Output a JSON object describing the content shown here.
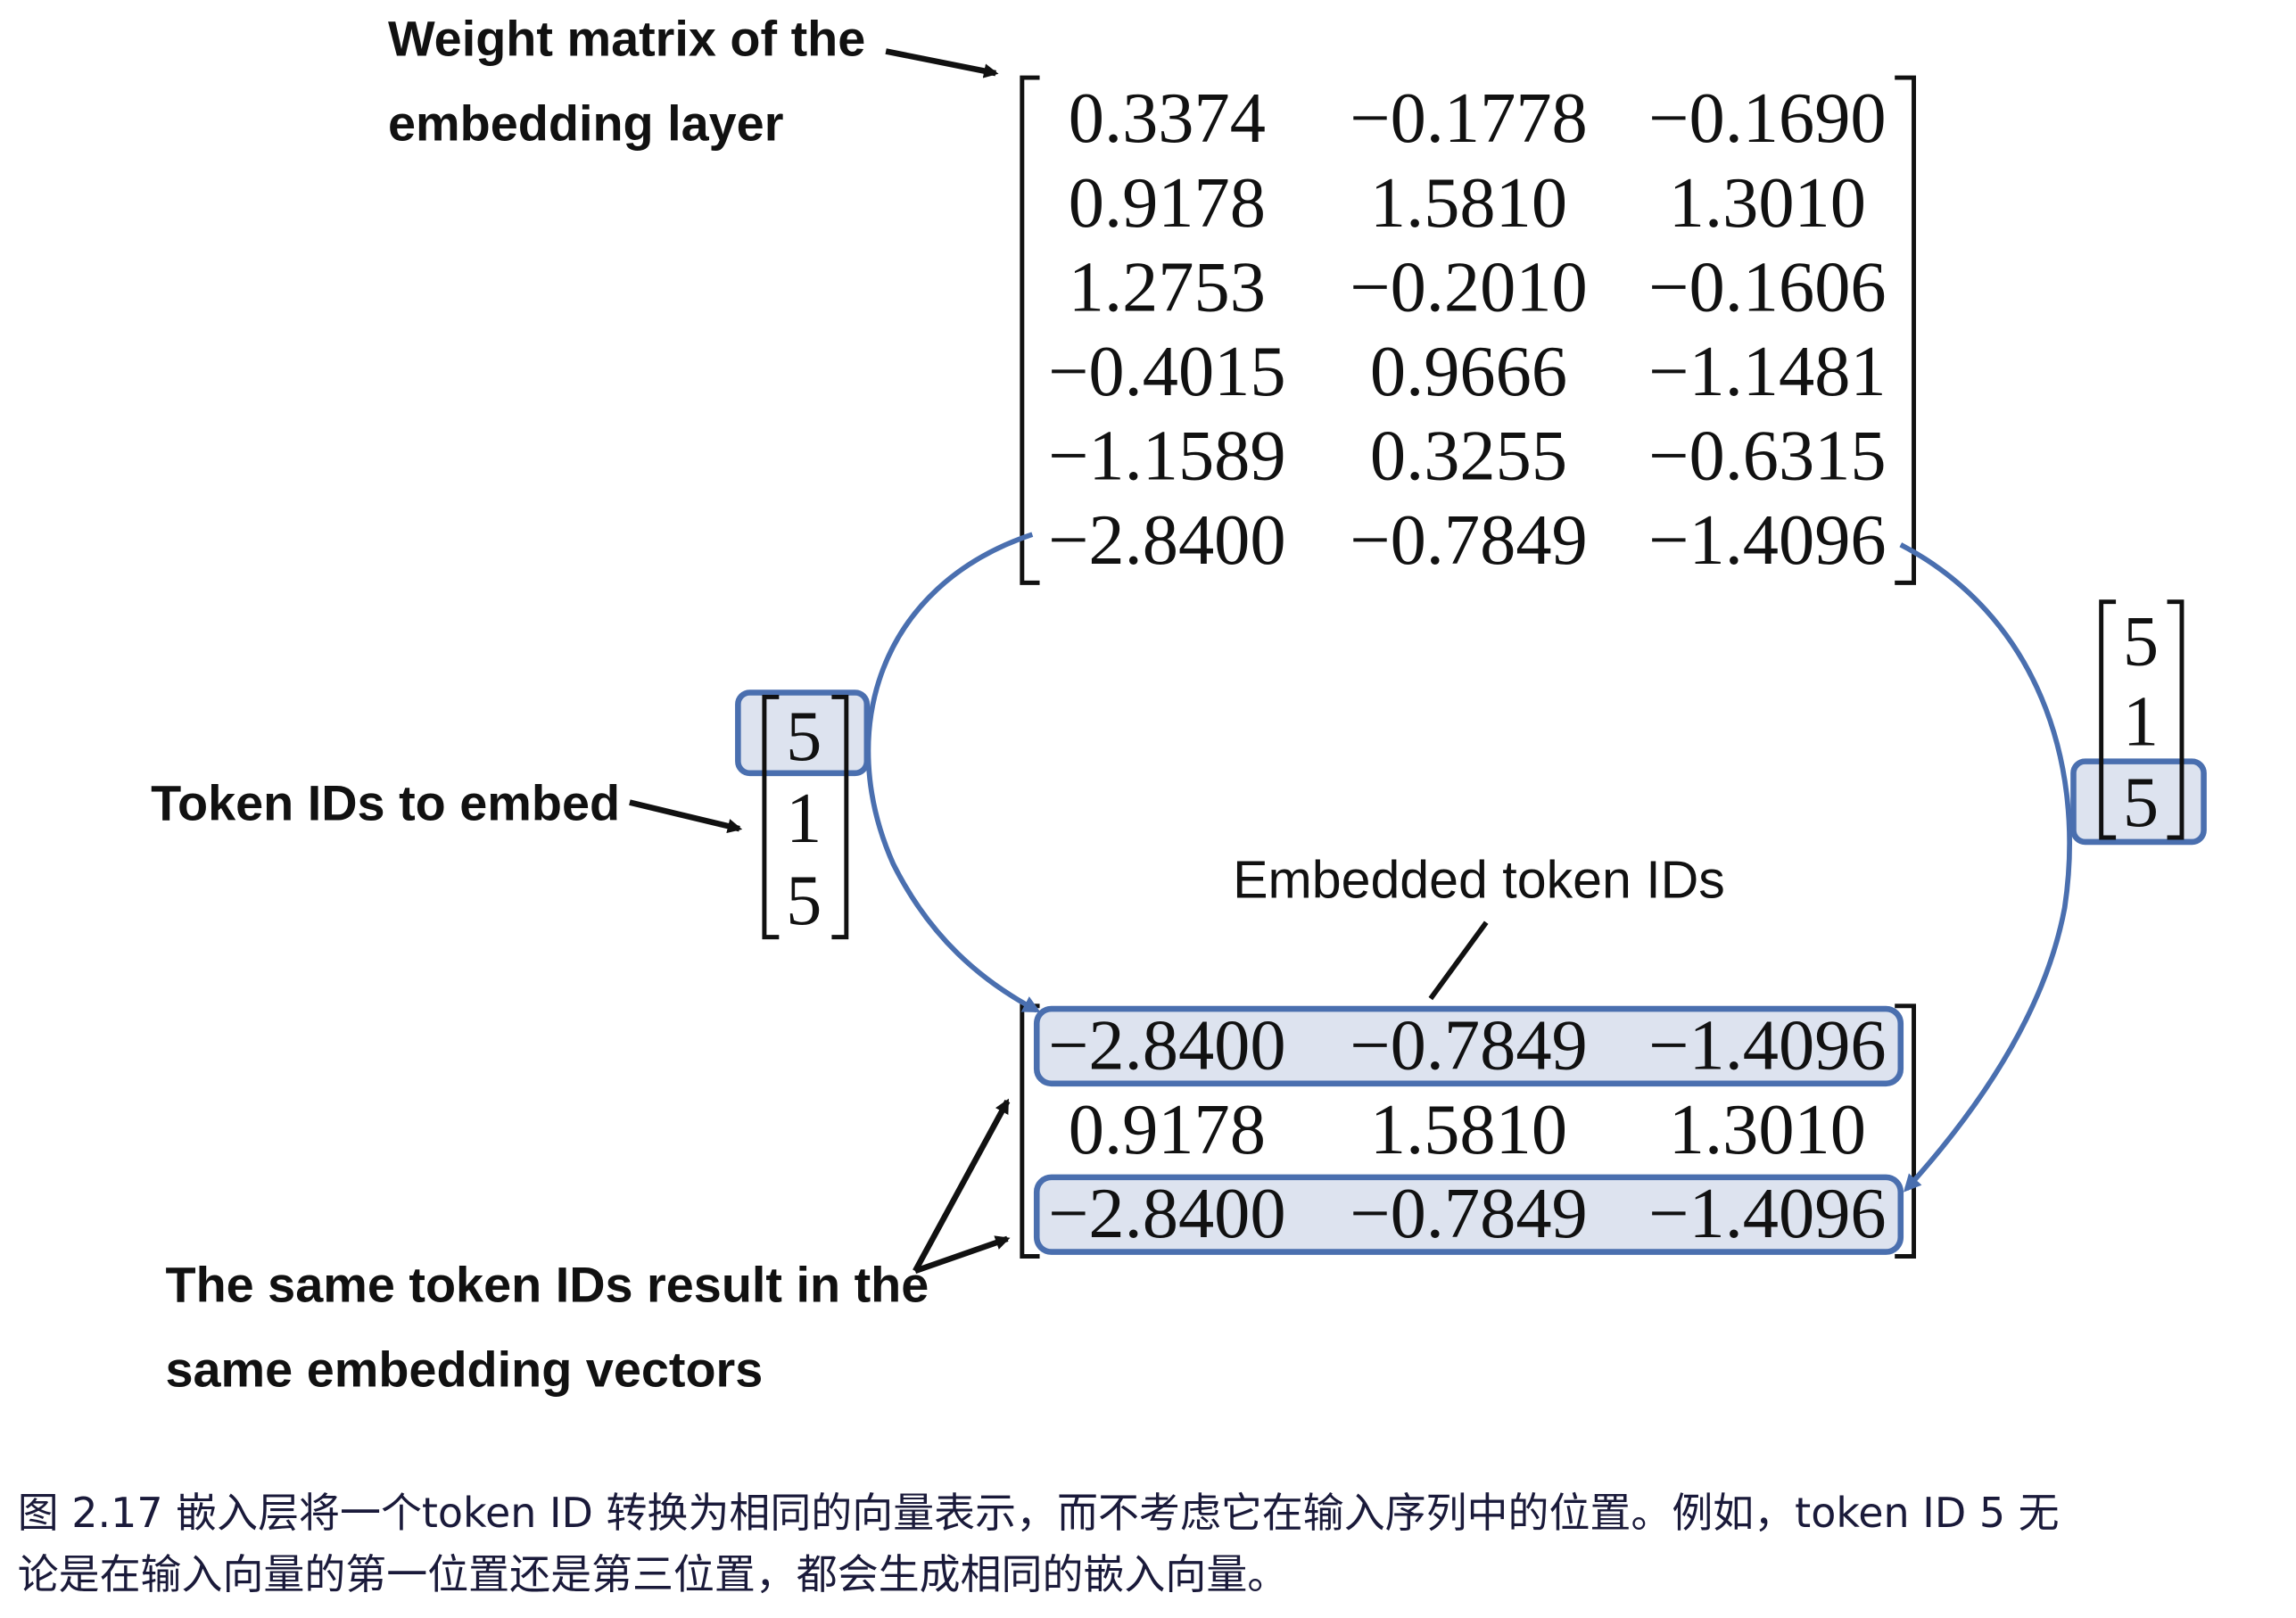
{
  "labels": {
    "weight_matrix_line1": "Weight matrix of the",
    "weight_matrix_line2": "embedding layer",
    "token_ids": "Token IDs to embed",
    "embedded": "Embedded token IDs",
    "same_line1": "The same token IDs result in the",
    "same_line2": "same embedding vectors"
  },
  "weight_matrix": [
    [
      "0.3374",
      "−0.1778",
      "−0.1690"
    ],
    [
      "0.9178",
      "1.5810",
      "1.3010"
    ],
    [
      "1.2753",
      "−0.2010",
      "−0.1606"
    ],
    [
      "−0.4015",
      "0.9666",
      "−1.1481"
    ],
    [
      "−1.1589",
      "0.3255",
      "−0.6315"
    ],
    [
      "−2.8400",
      "−0.7849",
      "−1.4096"
    ]
  ],
  "token_ids": [
    "5",
    "1",
    "5"
  ],
  "embedded_matrix": [
    [
      "−2.8400",
      "−0.7849",
      "−1.4096"
    ],
    [
      "0.9178",
      "1.5810",
      "1.3010"
    ],
    [
      "−2.8400",
      "−0.7849",
      "−1.4096"
    ]
  ],
  "colors": {
    "highlight_stroke": "#4a6faf",
    "highlight_fill": "#dde3ef"
  },
  "caption": {
    "line1": "图 2.17 嵌入层将一个token ID 转换为相同的向量表示，而不考虑它在输入序列中的位置。例如，token ID 5 无",
    "line2": "论是在输入向量的第一位置还是第三位置，都会生成相同的嵌入向量。"
  }
}
